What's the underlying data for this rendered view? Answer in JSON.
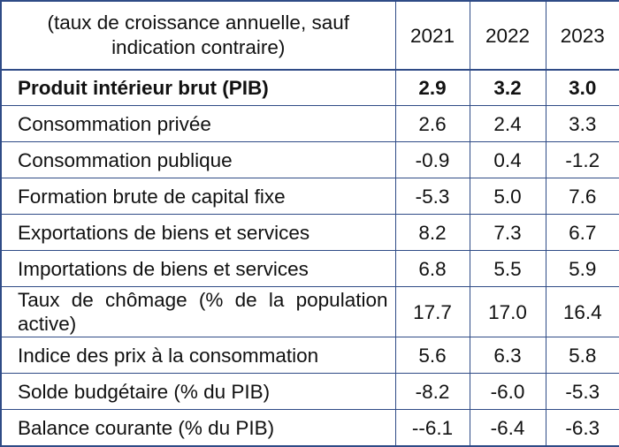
{
  "header": {
    "caption": "(taux de croissance annuelle, sauf indication contraire)",
    "years": [
      "2021",
      "2022",
      "2023"
    ]
  },
  "rows": [
    {
      "label": "Produit intérieur brut (PIB)",
      "values": [
        "2.9",
        "3.2",
        "3.0"
      ]
    },
    {
      "label": "Consommation privée",
      "values": [
        "2.6",
        "2.4",
        "3.3"
      ]
    },
    {
      "label": "Consommation publique",
      "values": [
        "-0.9",
        "0.4",
        "-1.2"
      ]
    },
    {
      "label": "Formation brute de capital fixe",
      "values": [
        "-5.3",
        "5.0",
        "7.6"
      ]
    },
    {
      "label": "Exportations de biens et services",
      "values": [
        "8.2",
        "7.3",
        "6.7"
      ]
    },
    {
      "label": "Importations de biens et services",
      "values": [
        "6.8",
        "5.5",
        "5.9"
      ]
    },
    {
      "label": "Taux de chômage (% de la population active)",
      "values": [
        "17.7",
        "17.0",
        "16.4"
      ]
    },
    {
      "label": "Indice des prix à la consommation",
      "values": [
        "5.6",
        "6.3",
        "5.8"
      ]
    },
    {
      "label": "Solde budgétaire (% du PIB)",
      "values": [
        "-8.2",
        "-6.0",
        "-5.3"
      ]
    },
    {
      "label": "Balance courante (% du PIB)",
      "values": [
        "--6.1",
        "-6.4",
        "-6.3"
      ]
    }
  ],
  "colors": {
    "border": "#2f4b86",
    "text": "#111111",
    "background": "#ffffff"
  }
}
